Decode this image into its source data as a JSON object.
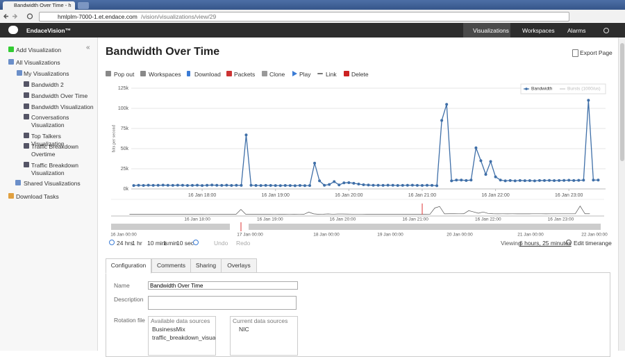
{
  "browser": {
    "tab_title": "Bandwidth Over Time - h",
    "url_host": "hmlplm-7000-1.et.endace.com",
    "url_path": "/vision/visualizations/view/29"
  },
  "app": {
    "brand": "EndaceVision™",
    "nav": [
      "Visualizations",
      "Workspaces",
      "Alarms"
    ]
  },
  "sidebar": {
    "add": "Add Visualization",
    "all": "All Visualizations",
    "mine": "My Visualizations",
    "items": [
      "Bandwidth 2",
      "Bandwidth Over Time",
      "Bandwidth Visualization",
      "Conversations Visualization",
      "Top Talkers Visualization",
      "Traffic Breakdown Overtime",
      "Traffic Breakdown Visualization"
    ],
    "shared": "Shared Visualizations",
    "downloads": "Download Tasks"
  },
  "page": {
    "title": "Bandwidth Over Time",
    "export": "Export Page",
    "toolbar": [
      "Pop out",
      "Workspaces",
      "Download",
      "Packets",
      "Clone",
      "Play",
      "Link",
      "Delete"
    ]
  },
  "chart_data": {
    "type": "line",
    "y_label": "bits per second",
    "x": [
      "16 Jan 17:04",
      "16 Jan 17:08",
      "16 Jan 17:12",
      "16 Jan 17:16",
      "16 Jan 17:20",
      "16 Jan 17:24",
      "16 Jan 17:28",
      "16 Jan 17:32",
      "16 Jan 17:36",
      "16 Jan 17:40",
      "16 Jan 17:44",
      "16 Jan 17:48",
      "16 Jan 17:52",
      "16 Jan 17:56",
      "16 Jan 18:00",
      "16 Jan 18:04",
      "16 Jan 18:08",
      "16 Jan 18:12",
      "16 Jan 18:16",
      "16 Jan 18:20",
      "16 Jan 18:24",
      "16 Jan 18:28",
      "16 Jan 18:32",
      "16 Jan 18:36",
      "16 Jan 18:40",
      "16 Jan 18:44",
      "16 Jan 18:48",
      "16 Jan 18:52",
      "16 Jan 18:56",
      "16 Jan 19:00",
      "16 Jan 19:04",
      "16 Jan 19:08",
      "16 Jan 19:12",
      "16 Jan 19:16",
      "16 Jan 19:20",
      "16 Jan 19:24",
      "16 Jan 19:28",
      "16 Jan 19:32",
      "16 Jan 19:36",
      "16 Jan 19:40",
      "16 Jan 19:44",
      "16 Jan 19:48",
      "16 Jan 19:52",
      "16 Jan 19:56",
      "16 Jan 20:00",
      "16 Jan 20:04",
      "16 Jan 20:08",
      "16 Jan 20:12",
      "16 Jan 20:16",
      "16 Jan 20:20",
      "16 Jan 20:24",
      "16 Jan 20:28",
      "16 Jan 20:32",
      "16 Jan 20:36",
      "16 Jan 20:40",
      "16 Jan 20:44",
      "16 Jan 20:48",
      "16 Jan 20:52",
      "16 Jan 20:56",
      "16 Jan 21:00",
      "16 Jan 21:04",
      "16 Jan 21:08",
      "16 Jan 21:12",
      "16 Jan 21:16",
      "16 Jan 21:20",
      "16 Jan 21:24",
      "16 Jan 21:28",
      "16 Jan 21:32",
      "16 Jan 21:36",
      "16 Jan 21:40",
      "16 Jan 21:44",
      "16 Jan 21:48",
      "16 Jan 21:52",
      "16 Jan 21:56",
      "16 Jan 22:00",
      "16 Jan 22:04",
      "16 Jan 22:08",
      "16 Jan 22:12",
      "16 Jan 22:16",
      "16 Jan 22:20",
      "16 Jan 22:24",
      "16 Jan 22:28",
      "16 Jan 22:32",
      "16 Jan 22:36",
      "16 Jan 22:40",
      "16 Jan 22:44",
      "16 Jan 22:48",
      "16 Jan 22:52",
      "16 Jan 22:56",
      "16 Jan 23:00",
      "16 Jan 23:04",
      "16 Jan 23:08",
      "16 Jan 23:12",
      "16 Jan 23:16",
      "16 Jan 23:20",
      "16 Jan 23:24"
    ],
    "series": [
      {
        "name": "Bandwidth",
        "color": "#3f6fa8",
        "values": [
          4200,
          4500,
          4300,
          4600,
          4400,
          4500,
          4700,
          4500,
          4400,
          4600,
          4500,
          4300,
          4400,
          4600,
          4200,
          4500,
          4800,
          4500,
          4400,
          4600,
          4300,
          4500,
          4400,
          67000,
          4500,
          4300,
          4200,
          4400,
          4300,
          4200,
          4100,
          4300,
          4200,
          4000,
          4300,
          4100,
          4200,
          32000,
          10000,
          4500,
          5500,
          9000,
          5000,
          7500,
          7800,
          7000,
          6000,
          5200,
          4800,
          4500,
          4500,
          4400,
          4600,
          4500,
          4300,
          4400,
          4500,
          4600,
          4400,
          4300,
          4500,
          4400,
          4000,
          85000,
          105000,
          10000,
          11000,
          11000,
          10500,
          11000,
          51000,
          35000,
          18000,
          34000,
          15000,
          11000,
          10000,
          10500,
          10000,
          10500,
          10200,
          10300,
          10000,
          10500,
          10400,
          10600,
          10300,
          10500,
          10600,
          10800,
          10500,
          10700,
          10900,
          110000,
          11000,
          11000
        ]
      }
    ],
    "legend_inactive": [
      "Bursts (1000/us)"
    ],
    "xlim": [
      "16 Jan 17:02",
      "16 Jan 23:30"
    ],
    "xticks": [
      "16 Jan 18:00",
      "16 Jan 19:00",
      "16 Jan 20:00",
      "16 Jan 21:00",
      "16 Jan 22:00",
      "16 Jan 23:00"
    ],
    "ylim": [
      0,
      125000
    ],
    "yticks": [
      {
        "value": 0,
        "label": "0k"
      },
      {
        "value": 25000,
        "label": "25k"
      },
      {
        "value": 50000,
        "label": "50k"
      },
      {
        "value": 75000,
        "label": "75k"
      },
      {
        "value": 100000,
        "label": "100k"
      },
      {
        "value": 125000,
        "label": "125k"
      }
    ],
    "grid": true,
    "legend": "top-right"
  },
  "timeline": {
    "labels": [
      "16 Jan 00:00",
      "17 Jan 00:00",
      "18 Jan 00:00",
      "19 Jan 00:00",
      "20 Jan 00:00",
      "21 Jan 00:00",
      "22 Jan 00:00"
    ]
  },
  "zoom": {
    "presets": [
      "24 hrs",
      "1 hr",
      "10 mins",
      "1 min",
      "10 sec"
    ],
    "undo": "Undo",
    "redo": "Redo",
    "viewing": "Viewing",
    "range": "6 hours, 25 minutes",
    "edit": "Edit timerange"
  },
  "tabs": [
    "Configuration",
    "Comments",
    "Sharing",
    "Overlays"
  ],
  "form": {
    "name_label": "Name",
    "name_value": "Bandwidth Over Time",
    "description_label": "Description",
    "rotation_label": "Rotation file",
    "available_title": "Available data sources",
    "available": [
      "BusinessMix",
      "traffic_breakdown_visuali"
    ],
    "current_title": "Current data sources",
    "current": [
      "NIC"
    ]
  }
}
